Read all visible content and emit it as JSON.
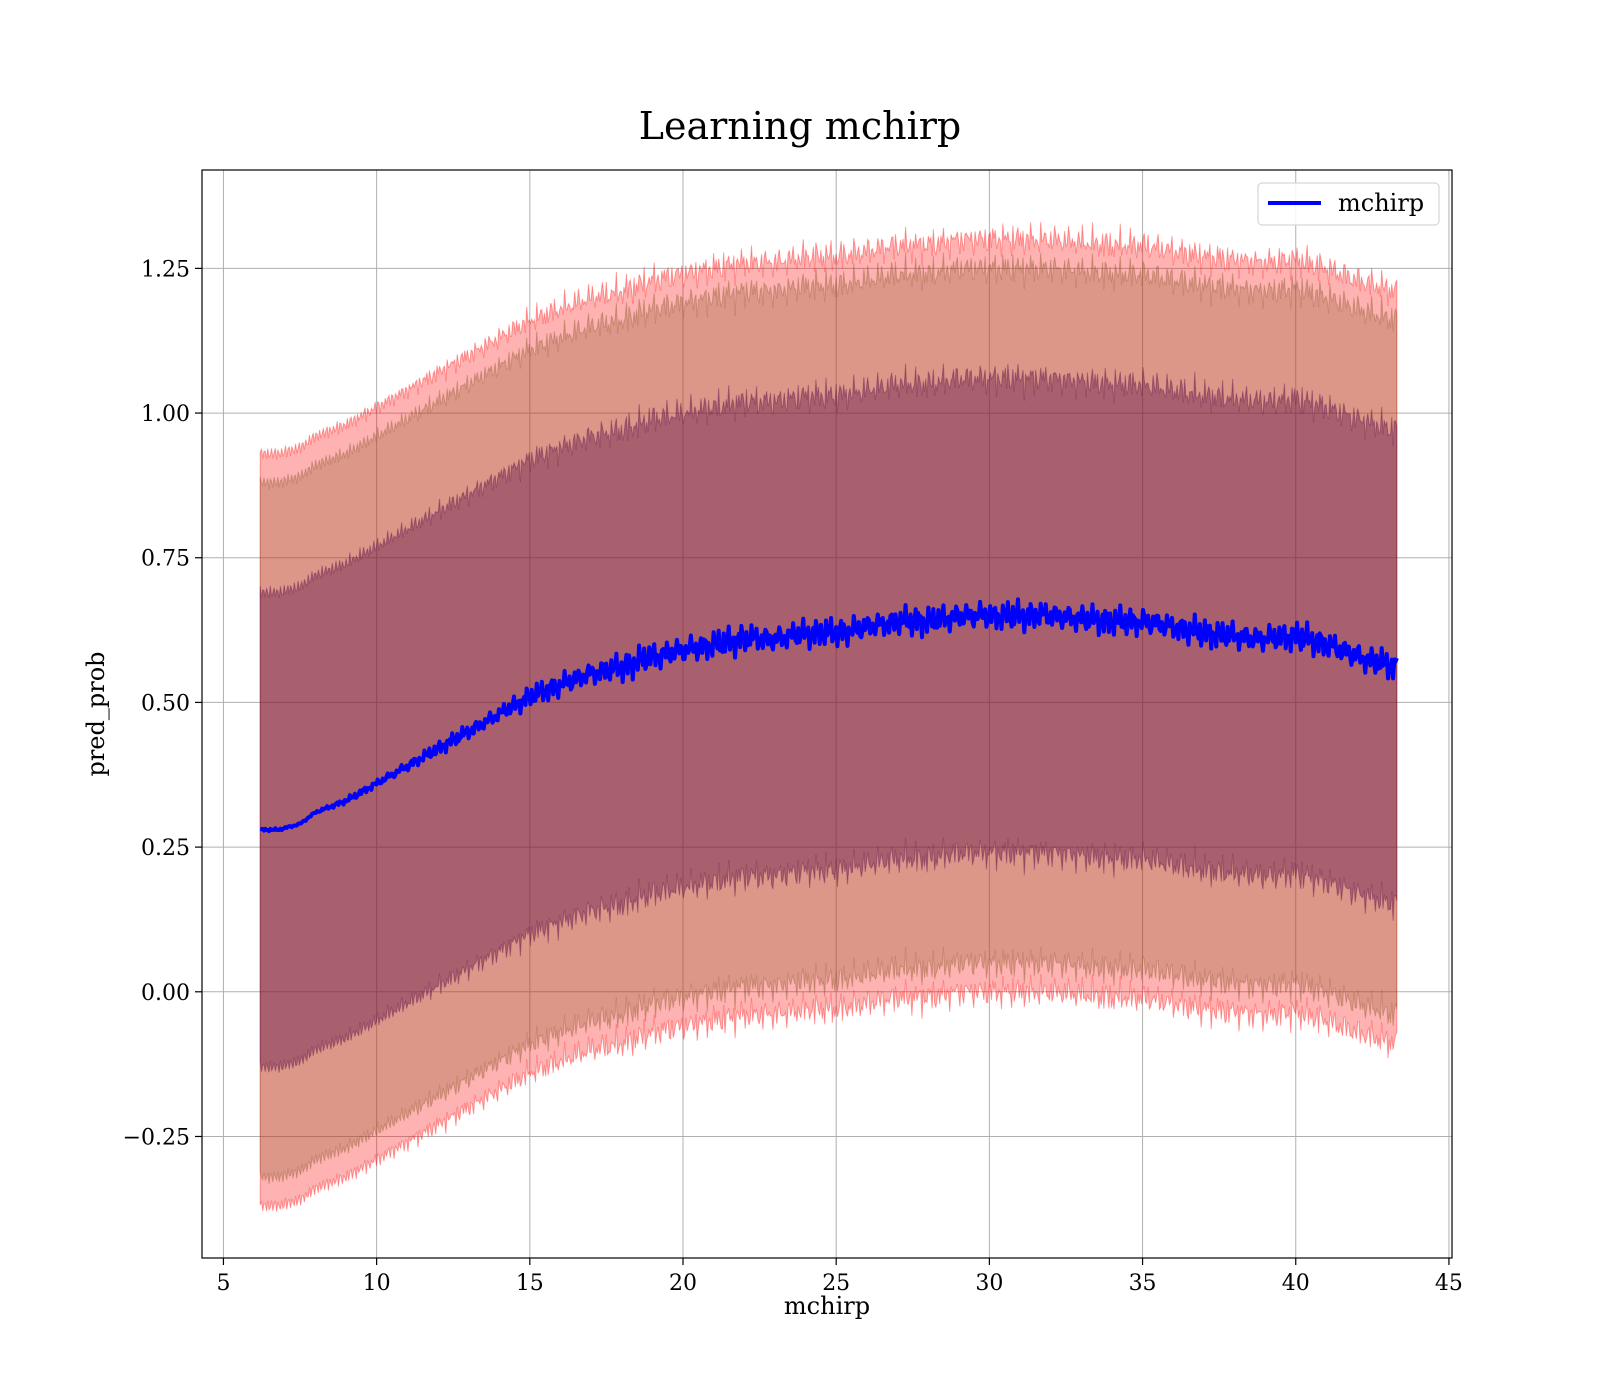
{
  "chart_data": {
    "type": "line",
    "title": "Learning mchirp",
    "xlabel": "mchirp",
    "ylabel": "pred_prob",
    "xlim": [
      4.3,
      45.1
    ],
    "ylim": [
      -0.46,
      1.42
    ],
    "xticks": [
      5,
      10,
      15,
      20,
      25,
      30,
      35,
      40,
      45
    ],
    "yticks": [
      -0.25,
      0.0,
      0.25,
      0.5,
      0.75,
      1.0,
      1.25
    ],
    "ytick_labels": [
      "−0.25",
      "0.00",
      "0.25",
      "0.50",
      "0.75",
      "1.00",
      "1.25"
    ],
    "grid": true,
    "legend": {
      "placement": "top-right",
      "entries": [
        {
          "label": "mchirp",
          "color": "#0000ff"
        }
      ]
    },
    "series": [
      {
        "name": "mchirp",
        "color": "#0000ff",
        "x": [
          6.2,
          6.8,
          7.5,
          8.0,
          9.0,
          10.0,
          11.0,
          12.0,
          13.0,
          14.0,
          15.0,
          16.0,
          17.0,
          18.0,
          19.0,
          20.0,
          21.0,
          22.0,
          23.0,
          24.0,
          25.0,
          26.0,
          27.0,
          28.0,
          29.0,
          30.0,
          31.0,
          32.0,
          33.0,
          34.0,
          35.0,
          36.0,
          37.0,
          38.0,
          39.0,
          40.0,
          41.0,
          42.0,
          43.3
        ],
        "y": [
          0.28,
          0.28,
          0.29,
          0.31,
          0.33,
          0.36,
          0.39,
          0.42,
          0.45,
          0.48,
          0.51,
          0.53,
          0.55,
          0.56,
          0.58,
          0.59,
          0.6,
          0.61,
          0.61,
          0.62,
          0.62,
          0.63,
          0.64,
          0.64,
          0.65,
          0.65,
          0.65,
          0.65,
          0.645,
          0.64,
          0.64,
          0.63,
          0.62,
          0.615,
          0.61,
          0.615,
          0.6,
          0.58,
          0.56
        ]
      }
    ],
    "bands": [
      {
        "sigma": 3,
        "color": "#ff0000",
        "opacity": 0.3,
        "half_width": 0.65
      },
      {
        "sigma": 2,
        "color": "#8b5a2b",
        "opacity": 0.3,
        "half_width": 0.6
      },
      {
        "sigma": 1,
        "color": "#5a0c46",
        "opacity": 0.4,
        "half_width": 0.41
      }
    ]
  }
}
